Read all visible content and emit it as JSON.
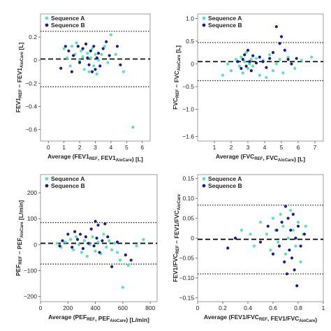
{
  "colors": {
    "sequence_a": "#5BE3B5",
    "sequence_b": "#1C1C8C"
  },
  "chart_data": [
    {
      "type": "scatter",
      "xlabel": "Average (FEV1REF, FEV1AioCare) [L]",
      "xlabel_parts": [
        [
          "Average (FEV1",
          ""
        ],
        [
          "REF",
          "sub"
        ],
        [
          ", FEV1",
          ""
        ],
        [
          "AioCare",
          "sub"
        ],
        [
          ") [L]",
          ""
        ]
      ],
      "ylabel": "FEV1REF − FEV1AioCare [L]",
      "ylabel_parts": [
        [
          "FEV1",
          ""
        ],
        [
          "REF",
          "sub"
        ],
        [
          " − FEV1",
          ""
        ],
        [
          "AioCare",
          "sub"
        ],
        [
          " [L]",
          ""
        ]
      ],
      "xlim": [
        -0.5,
        6.5
      ],
      "ylim": [
        -0.7,
        0.4
      ],
      "xticks": [
        0,
        1,
        2,
        3,
        4,
        5,
        6
      ],
      "yticks": [
        -0.6,
        -0.4,
        -0.2,
        0,
        0.2
      ],
      "ytick_labels": [
        "−0.6",
        "−0.4",
        "−0.2",
        "0",
        "0.2"
      ],
      "mean_line": 0.01,
      "upper_loa": 0.25,
      "lower_loa": -0.23,
      "legend": [
        "Sequence A",
        "Sequence B"
      ],
      "series": [
        {
          "name": "Sequence A",
          "points": [
            [
              1.0,
              0.1
            ],
            [
              1.2,
              0.02
            ],
            [
              1.4,
              -0.05
            ],
            [
              1.5,
              0.12
            ],
            [
              1.7,
              0.05
            ],
            [
              1.8,
              0.15
            ],
            [
              2.0,
              0.0
            ],
            [
              2.1,
              0.08
            ],
            [
              2.2,
              0.03
            ],
            [
              2.3,
              -0.08
            ],
            [
              2.5,
              0.06
            ],
            [
              2.6,
              -0.1
            ],
            [
              2.7,
              0.02
            ],
            [
              2.8,
              0.1
            ],
            [
              2.9,
              -0.05
            ],
            [
              3.0,
              0.05
            ],
            [
              3.1,
              -0.12
            ],
            [
              3.2,
              0.0
            ],
            [
              3.4,
              0.05
            ],
            [
              3.6,
              0.12
            ],
            [
              3.8,
              -0.02
            ],
            [
              4.0,
              0.22
            ],
            [
              4.3,
              0.05
            ],
            [
              4.8,
              -0.1
            ],
            [
              5.4,
              -0.58
            ]
          ]
        },
        {
          "name": "Sequence B",
          "points": [
            [
              0.8,
              -0.07
            ],
            [
              1.1,
              0.12
            ],
            [
              1.3,
              0.08
            ],
            [
              1.5,
              -0.1
            ],
            [
              1.6,
              0.04
            ],
            [
              1.9,
              0.12
            ],
            [
              2.0,
              -0.02
            ],
            [
              2.2,
              0.1
            ],
            [
              2.4,
              0.14
            ],
            [
              2.5,
              0.02
            ],
            [
              2.6,
              -0.04
            ],
            [
              2.7,
              0.08
            ],
            [
              2.8,
              -0.1
            ],
            [
              2.9,
              0.12
            ],
            [
              3.0,
              -0.08
            ],
            [
              3.1,
              0.02
            ],
            [
              3.2,
              0.06
            ],
            [
              3.3,
              -0.05
            ],
            [
              3.5,
              0.1
            ],
            [
              3.7,
              0.16
            ],
            [
              3.9,
              0.04
            ],
            [
              4.4,
              0.12
            ],
            [
              4.6,
              -0.04
            ]
          ]
        }
      ]
    },
    {
      "type": "scatter",
      "xlabel": "Average (FVCREF, FVCAioCare) [L]",
      "xlabel_parts": [
        [
          "Average (FVC",
          ""
        ],
        [
          "REF",
          "sub"
        ],
        [
          ", FVC",
          ""
        ],
        [
          "AioCare",
          "sub"
        ],
        [
          ") [L]",
          ""
        ]
      ],
      "ylabel": "FVCREF − FVCAioCare [L]",
      "ylabel_parts": [
        [
          "FVC",
          ""
        ],
        [
          "REF",
          "sub"
        ],
        [
          " − FVC",
          ""
        ],
        [
          "AioCare",
          "sub"
        ],
        [
          " [L]",
          ""
        ]
      ],
      "xlim": [
        0,
        7.5
      ],
      "ylim": [
        -1.7,
        1.1
      ],
      "xticks": [
        1,
        2,
        3,
        4,
        5,
        6,
        7
      ],
      "yticks": [
        -1.6,
        -1.0,
        -0.5,
        0,
        0.5,
        1.0
      ],
      "ytick_labels": [
        "−1.6",
        "−1.0",
        "−0.5",
        "0",
        "0.5",
        "1.0"
      ],
      "mean_line": 0.05,
      "upper_loa": 0.47,
      "lower_loa": -0.37,
      "legend": [
        "Sequence A",
        "Sequence B"
      ],
      "series": [
        {
          "name": "Sequence A",
          "points": [
            [
              1.5,
              -0.25
            ],
            [
              1.8,
              0.0
            ],
            [
              2.0,
              -0.15
            ],
            [
              2.3,
              0.1
            ],
            [
              2.5,
              -0.05
            ],
            [
              2.6,
              0.15
            ],
            [
              2.7,
              -0.2
            ],
            [
              2.8,
              0.05
            ],
            [
              2.9,
              0.25
            ],
            [
              3.0,
              -0.1
            ],
            [
              3.1,
              0.0
            ],
            [
              3.2,
              0.1
            ],
            [
              3.3,
              -0.05
            ],
            [
              3.5,
              0.12
            ],
            [
              3.7,
              -0.25
            ],
            [
              3.9,
              0.08
            ],
            [
              4.1,
              -0.3
            ],
            [
              4.3,
              0.2
            ],
            [
              4.5,
              -0.15
            ],
            [
              4.7,
              0.0
            ],
            [
              4.9,
              0.1
            ],
            [
              5.1,
              -0.2
            ],
            [
              5.4,
              0.15
            ],
            [
              5.8,
              -0.1
            ],
            [
              6.2,
              0.08
            ],
            [
              6.8,
              0.15
            ]
          ]
        },
        {
          "name": "Sequence B",
          "points": [
            [
              2.4,
              0.05
            ],
            [
              2.6,
              -0.1
            ],
            [
              2.7,
              0.1
            ],
            [
              2.8,
              0.2
            ],
            [
              2.9,
              -0.05
            ],
            [
              3.0,
              0.3
            ],
            [
              3.1,
              0.05
            ],
            [
              3.2,
              -0.15
            ],
            [
              3.3,
              0.18
            ],
            [
              3.5,
              0.02
            ],
            [
              3.7,
              0.15
            ],
            [
              3.9,
              0.05
            ],
            [
              4.1,
              -0.08
            ],
            [
              4.3,
              0.12
            ],
            [
              4.5,
              0.25
            ],
            [
              4.7,
              0.82
            ],
            [
              4.9,
              0.45
            ],
            [
              5.0,
              0.6
            ],
            [
              5.2,
              0.3
            ],
            [
              5.4,
              0.1
            ],
            [
              5.6,
              0.0
            ],
            [
              5.9,
              0.12
            ]
          ]
        }
      ]
    },
    {
      "type": "scatter",
      "xlabel": "Average (PEFREF, PEFAioCare) [L/min]",
      "xlabel_parts": [
        [
          "Average (PEF",
          ""
        ],
        [
          "REF",
          "sub"
        ],
        [
          ", PEF",
          ""
        ],
        [
          "AioCare",
          "sub"
        ],
        [
          ") [L/min]",
          ""
        ]
      ],
      "ylabel": "PEFREF − PEFAioCare [L/min]",
      "ylabel_parts": [
        [
          "PEF",
          ""
        ],
        [
          "REF",
          "sub"
        ],
        [
          " − PEF",
          ""
        ],
        [
          "AioCare",
          "sub"
        ],
        [
          " [L/min]",
          ""
        ]
      ],
      "xlim": [
        0,
        850
      ],
      "ylim": [
        -220,
        270
      ],
      "xticks": [
        0,
        200,
        400,
        600,
        800
      ],
      "yticks": [
        -200,
        -100,
        0,
        100,
        200
      ],
      "ytick_labels": [
        "−200",
        "−100",
        "0",
        "100",
        "200"
      ],
      "mean_line": 5,
      "upper_loa": 85,
      "lower_loa": -75,
      "legend": [
        "Sequence A",
        "Sequence B"
      ],
      "series": [
        {
          "name": "Sequence A",
          "points": [
            [
              120,
              5
            ],
            [
              150,
              -10
            ],
            [
              180,
              10
            ],
            [
              220,
              20
            ],
            [
              240,
              -20
            ],
            [
              260,
              30
            ],
            [
              280,
              0
            ],
            [
              300,
              -30
            ],
            [
              320,
              15
            ],
            [
              340,
              -45
            ],
            [
              360,
              0
            ],
            [
              380,
              30
            ],
            [
              400,
              -25
            ],
            [
              420,
              10
            ],
            [
              440,
              -35
            ],
            [
              460,
              40
            ],
            [
              480,
              -10
            ],
            [
              500,
              15
            ],
            [
              520,
              -20
            ],
            [
              540,
              5
            ],
            [
              560,
              -30
            ],
            [
              580,
              -60
            ],
            [
              600,
              -165
            ],
            [
              640,
              -80
            ],
            [
              700,
              -5
            ],
            [
              750,
              20
            ]
          ]
        },
        {
          "name": "Sequence B",
          "points": [
            [
              140,
              -5
            ],
            [
              160,
              15
            ],
            [
              200,
              40
            ],
            [
              230,
              -10
            ],
            [
              250,
              50
            ],
            [
              270,
              20
            ],
            [
              290,
              40
            ],
            [
              310,
              -15
            ],
            [
              330,
              30
            ],
            [
              350,
              5
            ],
            [
              370,
              60
            ],
            [
              390,
              -5
            ],
            [
              400,
              90
            ],
            [
              410,
              25
            ],
            [
              420,
              75
            ],
            [
              430,
              -30
            ],
            [
              450,
              15
            ],
            [
              470,
              80
            ],
            [
              490,
              30
            ],
            [
              520,
              -85
            ],
            [
              560,
              10
            ],
            [
              620,
              -40
            ],
            [
              660,
              -60
            ]
          ]
        }
      ]
    },
    {
      "type": "scatter",
      "xlabel": "Average (FEV1/FVCREF, FEV1/FVCAioCare)",
      "xlabel_parts": [
        [
          "Average (FEV1/FVC",
          ""
        ],
        [
          "REF",
          "sub"
        ],
        [
          ", FEV1/FVC",
          ""
        ],
        [
          "AioCare",
          "sub"
        ],
        [
          ")",
          ""
        ]
      ],
      "ylabel": "FEV1/FVCREF − FEV1/FVCAioCare",
      "ylabel_parts": [
        [
          "FEV1/FVC",
          ""
        ],
        [
          "REF",
          "sub"
        ],
        [
          " − FEV1/FVC",
          ""
        ],
        [
          "AioCare",
          "sub"
        ]
      ],
      "xlim": [
        0,
        1.0
      ],
      "ylim": [
        -0.16,
        0.16
      ],
      "xticks": [
        0,
        0.2,
        0.4,
        0.6,
        0.8,
        1.0
      ],
      "yticks": [
        -0.15,
        -0.1,
        -0.05,
        0,
        0.05,
        0.1,
        0.15
      ],
      "ytick_labels": [
        "−0.15",
        "−0.10",
        "−0.05",
        "0",
        "0.05",
        "0.10",
        "0.15"
      ],
      "mean_line": -0.003,
      "upper_loa": 0.083,
      "lower_loa": -0.09,
      "legend": [
        "Sequence A",
        "Sequence B"
      ],
      "series": [
        {
          "name": "Sequence A",
          "points": [
            [
              0.35,
              0.02
            ],
            [
              0.42,
              0.01
            ],
            [
              0.45,
              -0.02
            ],
            [
              0.5,
              0.04
            ],
            [
              0.55,
              0.01
            ],
            [
              0.58,
              -0.03
            ],
            [
              0.6,
              0.05
            ],
            [
              0.62,
              0.02
            ],
            [
              0.64,
              -0.01
            ],
            [
              0.66,
              0.06
            ],
            [
              0.68,
              0.03
            ],
            [
              0.7,
              -0.04
            ],
            [
              0.72,
              0.0
            ],
            [
              0.74,
              0.07
            ],
            [
              0.76,
              0.02
            ],
            [
              0.78,
              -0.02
            ],
            [
              0.8,
              0.04
            ],
            [
              0.82,
              -0.06
            ],
            [
              0.84,
              0.01
            ],
            [
              0.86,
              0.03
            ]
          ]
        },
        {
          "name": "Sequence B",
          "points": [
            [
              0.24,
              -0.025
            ],
            [
              0.3,
              0.0
            ],
            [
              0.5,
              -0.01
            ],
            [
              0.56,
              0.03
            ],
            [
              0.6,
              -0.04
            ],
            [
              0.63,
              0.02
            ],
            [
              0.65,
              -0.02
            ],
            [
              0.67,
              0.04
            ],
            [
              0.69,
              -0.06
            ],
            [
              0.7,
              0.08
            ],
            [
              0.71,
              -0.09
            ],
            [
              0.72,
              0.05
            ],
            [
              0.73,
              -0.03
            ],
            [
              0.74,
              0.02
            ],
            [
              0.75,
              -0.05
            ],
            [
              0.76,
              0.06
            ],
            [
              0.77,
              -0.08
            ],
            [
              0.78,
              0.0
            ],
            [
              0.79,
              -0.12
            ],
            [
              0.8,
              0.03
            ],
            [
              0.82,
              -0.02
            ],
            [
              0.85,
              0.01
            ]
          ]
        }
      ]
    }
  ]
}
